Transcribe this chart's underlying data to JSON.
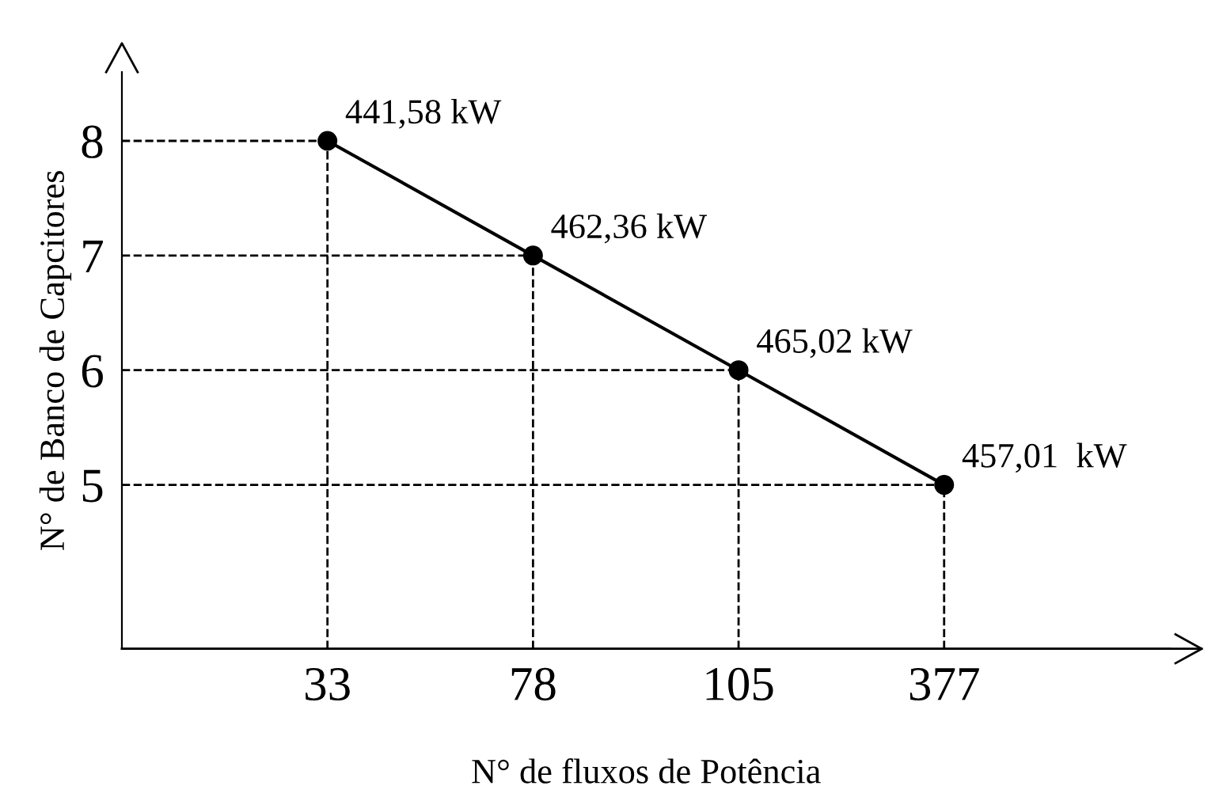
{
  "chart_data": {
    "type": "line",
    "xlabel": "N° de fluxos de Potência",
    "ylabel": "N° de Banco de Capcitores",
    "categories": [
      "33",
      "78",
      "105",
      "377"
    ],
    "series": [
      {
        "color": "#000000",
        "values": [
          8,
          7,
          6,
          5
        ]
      }
    ],
    "marker": "circle",
    "line_style": "solid",
    "ylim": [
      3.57,
      8.6
    ],
    "yticks": [
      5,
      6,
      7,
      8
    ],
    "grid": false,
    "ref_lines": [
      {
        "axis": "y",
        "value": 8,
        "line_style": "dashed",
        "color": "#000000"
      },
      {
        "axis": "y",
        "value": 7,
        "line_style": "dashed",
        "color": "#000000"
      },
      {
        "axis": "y",
        "value": 6,
        "line_style": "dashed",
        "color": "#000000"
      },
      {
        "axis": "y",
        "value": 5,
        "line_style": "dashed",
        "color": "#000000"
      },
      {
        "axis": "x",
        "value": "33",
        "line_style": "dashed",
        "color": "#000000"
      },
      {
        "axis": "x",
        "value": "78",
        "line_style": "dashed",
        "color": "#000000"
      },
      {
        "axis": "x",
        "value": "105",
        "line_style": "dashed",
        "color": "#000000"
      },
      {
        "axis": "x",
        "value": "377",
        "line_style": "dashed",
        "color": "#000000"
      }
    ],
    "annotations": [
      {
        "text": "441,58 kW",
        "x": "33",
        "y": 8
      },
      {
        "text": "462,36 kW",
        "x": "78",
        "y": 7
      },
      {
        "text": "465,02 kW",
        "x": "105",
        "y": 6
      },
      {
        "text": "457,01  kW",
        "x": "377",
        "y": 5
      }
    ]
  }
}
